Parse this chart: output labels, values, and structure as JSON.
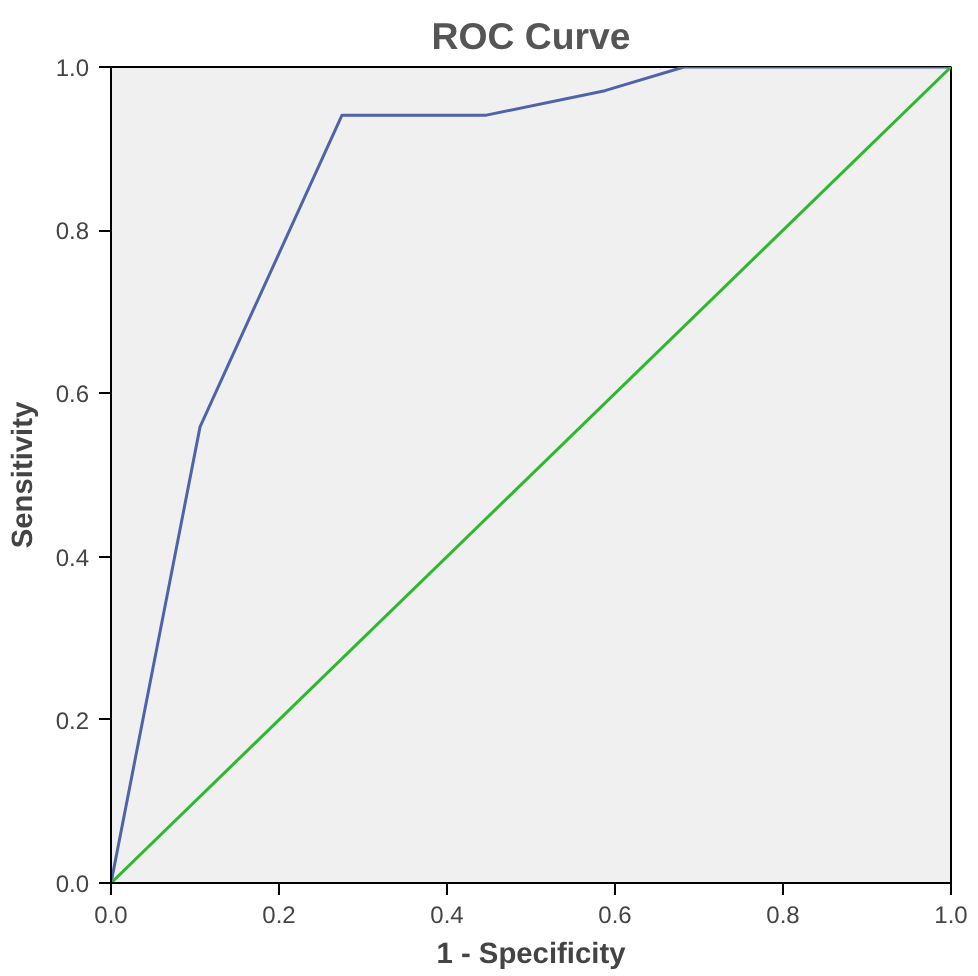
{
  "chart_data": {
    "type": "line",
    "title": "ROC Curve",
    "xlabel": "1 - Specificity",
    "ylabel": "Sensitivity",
    "series": [
      {
        "x": [
          0,
          0.106,
          0.275,
          0.447,
          0.588,
          0.682,
          1.0
        ],
        "values": [
          0,
          0.559,
          0.941,
          0.941,
          0.971,
          1.0,
          1.0
        ],
        "color": "#4f63a8"
      },
      {
        "x": [
          0,
          1.0
        ],
        "values": [
          0,
          1.0
        ],
        "color": "#2eb82e"
      }
    ],
    "xlim": [
      0,
      1.0
    ],
    "ylim": [
      0,
      1.0
    ],
    "xticks": [
      {
        "value": 0,
        "label": "0.0"
      },
      0.2,
      0.4,
      0.6,
      0.8,
      {
        "value": 1.0,
        "label": "1.0"
      }
    ],
    "yticks": [
      {
        "value": 0,
        "label": "0.0"
      },
      0.2,
      0.4,
      0.6,
      0.8,
      {
        "value": 1.0,
        "label": "1.0"
      }
    ],
    "marker": "none",
    "line_style": "solid"
  }
}
